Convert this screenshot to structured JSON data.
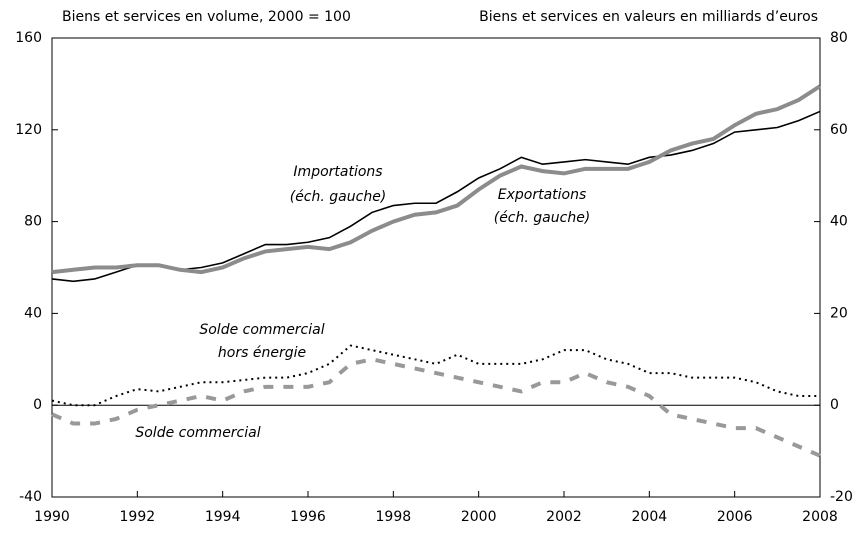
{
  "chart_data": {
    "type": "line",
    "y_label": "Biens et services en volume, 2000 = 100",
    "y2_label": "Biens et services en valeurs en milliards d’euros",
    "x": [
      1990,
      1990.5,
      1991,
      1991.5,
      1992,
      1992.5,
      1993,
      1993.5,
      1994,
      1994.5,
      1995,
      1995.5,
      1996,
      1996.5,
      1997,
      1997.5,
      1998,
      1998.5,
      1999,
      1999.5,
      2000,
      2000.5,
      2001,
      2001.5,
      2002,
      2002.5,
      2003,
      2003.5,
      2004,
      2004.5,
      2005,
      2005.5,
      2006,
      2006.5,
      2007,
      2007.5,
      2008
    ],
    "xlim": [
      1990,
      2008
    ],
    "xticks": [
      1990,
      1992,
      1994,
      1996,
      1998,
      2000,
      2002,
      2004,
      2006,
      2008
    ],
    "ylim": [
      -40,
      160
    ],
    "yticks": [
      -40,
      0,
      40,
      80,
      120,
      160
    ],
    "y2lim": [
      -20,
      80
    ],
    "y2ticks": [
      -20,
      0,
      20,
      40,
      60,
      80
    ],
    "series": [
      {
        "name": "Importations",
        "color": "#000000",
        "style": "solid",
        "values": [
          55,
          54,
          55,
          58,
          61,
          61,
          59,
          60,
          62,
          66,
          70,
          70,
          71,
          73,
          78,
          84,
          87,
          88,
          88,
          93,
          99,
          103,
          108,
          105,
          106,
          107,
          106,
          105,
          108,
          109,
          111,
          114,
          119,
          120,
          121,
          124,
          128
        ]
      },
      {
        "name": "Exportations",
        "color": "#8c8c8c",
        "style": "thick",
        "values": [
          58,
          59,
          60,
          60,
          61,
          61,
          59,
          58,
          60,
          64,
          67,
          68,
          69,
          68,
          71,
          76,
          80,
          83,
          84,
          87,
          94,
          100,
          104,
          102,
          101,
          103,
          103,
          103,
          106,
          111,
          114,
          116,
          122,
          127,
          129,
          133,
          139
        ]
      },
      {
        "name": "Solde commercial hors énergie",
        "color": "#000000",
        "style": "dotted",
        "axis": "y2",
        "values": [
          1,
          0,
          0,
          2,
          3.5,
          3,
          4,
          5,
          5,
          5.5,
          6,
          6,
          7,
          9,
          13,
          12,
          11,
          10,
          9,
          11,
          9,
          9,
          9,
          10,
          12,
          12,
          10,
          9,
          7,
          7,
          6,
          6,
          6,
          5,
          3,
          2,
          2
        ]
      },
      {
        "name": "Solde commercial",
        "color": "#999999",
        "style": "dashed",
        "axis": "y2",
        "values": [
          -2,
          -4,
          -4,
          -3,
          -1,
          0,
          1,
          2,
          1,
          3,
          4,
          4,
          4,
          5,
          9,
          10,
          9,
          8,
          7,
          6,
          5,
          4,
          3,
          5,
          5,
          7,
          5,
          4,
          2,
          -2,
          -3,
          -4,
          -5,
          -5,
          -7,
          -9,
          -11
        ]
      }
    ],
    "annotations": [
      "Importations",
      "(éch. gauche)",
      "Exportations",
      "(éch. gauche)",
      "Solde commercial",
      "hors énergie",
      "Solde commercial"
    ]
  }
}
